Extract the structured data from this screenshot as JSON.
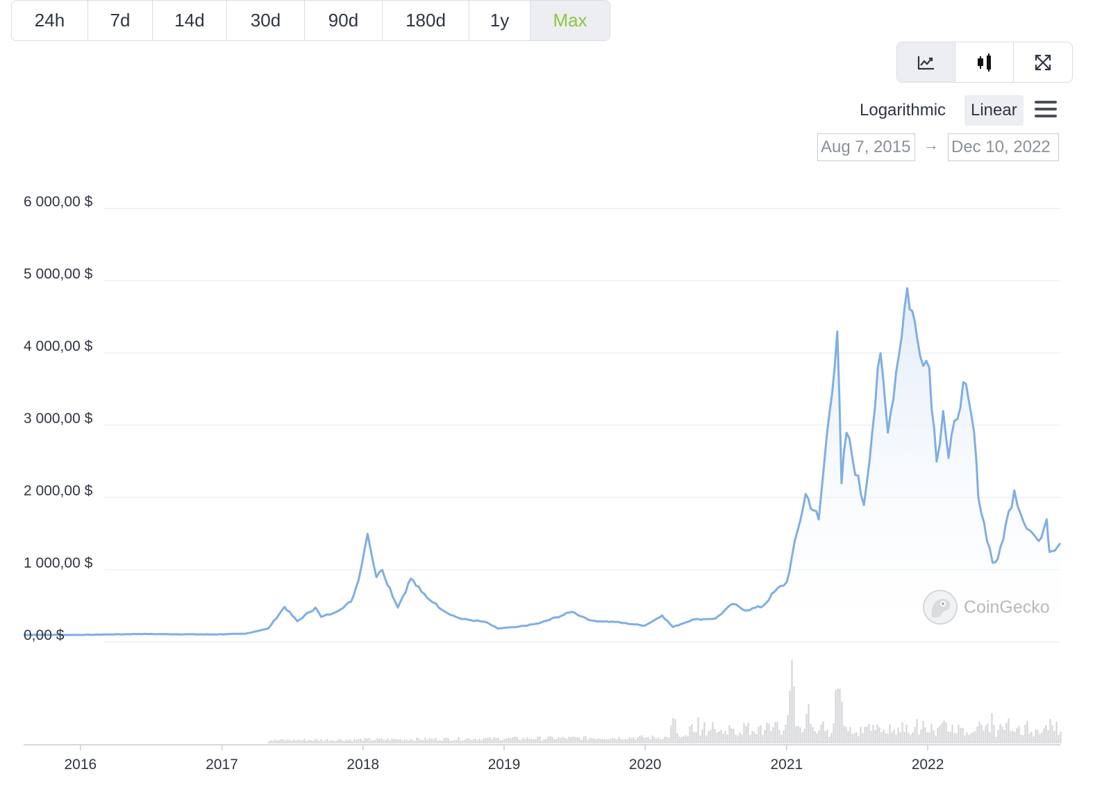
{
  "ranges": [
    "24h",
    "7d",
    "14d",
    "30d",
    "90d",
    "180d",
    "1y",
    "Max"
  ],
  "active_range": "Max",
  "view_modes": [
    {
      "name": "line-chart",
      "icon": "line-chart-icon",
      "active": true
    },
    {
      "name": "candlestick",
      "icon": "candlestick-icon",
      "active": false
    },
    {
      "name": "fullscreen",
      "icon": "fullscreen-icon",
      "active": false
    }
  ],
  "scale": {
    "logarithmic": "Logarithmic",
    "linear": "Linear",
    "active": "Linear"
  },
  "date_range": {
    "from": "Aug 7, 2015",
    "arrow": "→",
    "to": "Dec 10, 2022"
  },
  "watermark": "CoinGecko",
  "colors": {
    "line": "#7eaee3",
    "fill_top": "#dfeaf8",
    "volume": "#d4d6d9",
    "accent": "#8dc63f"
  },
  "chart_data": {
    "type": "area",
    "title": "",
    "xlabel": "",
    "ylabel": "",
    "ylim": [
      0,
      6000
    ],
    "yticks": [
      {
        "value": 0,
        "label": "0,00 $"
      },
      {
        "value": 1000,
        "label": "1 000,00 $"
      },
      {
        "value": 2000,
        "label": "2 000,00 $"
      },
      {
        "value": 3000,
        "label": "3 000,00 $"
      },
      {
        "value": 4000,
        "label": "4 000,00 $"
      },
      {
        "value": 5000,
        "label": "5 000,00 $"
      },
      {
        "value": 6000,
        "label": "6 000,00 $"
      }
    ],
    "xlim": [
      "2015-08-07",
      "2022-12-10"
    ],
    "xticks": [
      {
        "date": "2016-01-01",
        "label": "2016"
      },
      {
        "date": "2017-01-01",
        "label": "2017"
      },
      {
        "date": "2018-01-01",
        "label": "2018"
      },
      {
        "date": "2019-01-01",
        "label": "2019"
      },
      {
        "date": "2020-01-01",
        "label": "2020"
      },
      {
        "date": "2021-01-01",
        "label": "2021"
      },
      {
        "date": "2022-01-01",
        "label": "2022"
      }
    ],
    "grid": true,
    "price": [
      [
        "2015-08-07",
        3
      ],
      [
        "2016-01-01",
        1
      ],
      [
        "2016-06-01",
        14
      ],
      [
        "2016-12-01",
        8
      ],
      [
        "2017-03-01",
        16
      ],
      [
        "2017-05-01",
        90
      ],
      [
        "2017-06-12",
        390
      ],
      [
        "2017-07-15",
        190
      ],
      [
        "2017-08-31",
        380
      ],
      [
        "2017-09-15",
        250
      ],
      [
        "2017-10-15",
        300
      ],
      [
        "2017-12-01",
        460
      ],
      [
        "2017-12-20",
        750
      ],
      [
        "2018-01-13",
        1400
      ],
      [
        "2018-02-05",
        800
      ],
      [
        "2018-02-20",
        900
      ],
      [
        "2018-04-01",
        380
      ],
      [
        "2018-05-05",
        780
      ],
      [
        "2018-06-01",
        600
      ],
      [
        "2018-07-01",
        450
      ],
      [
        "2018-08-15",
        280
      ],
      [
        "2018-09-15",
        220
      ],
      [
        "2018-11-15",
        180
      ],
      [
        "2018-12-15",
        90
      ],
      [
        "2019-02-01",
        110
      ],
      [
        "2019-04-01",
        160
      ],
      [
        "2019-06-26",
        320
      ],
      [
        "2019-08-15",
        200
      ],
      [
        "2019-10-15",
        180
      ],
      [
        "2019-12-31",
        130
      ],
      [
        "2020-02-14",
        270
      ],
      [
        "2020-03-13",
        110
      ],
      [
        "2020-05-01",
        210
      ],
      [
        "2020-07-01",
        230
      ],
      [
        "2020-08-15",
        430
      ],
      [
        "2020-09-15",
        340
      ],
      [
        "2020-11-01",
        400
      ],
      [
        "2020-12-01",
        600
      ],
      [
        "2021-01-01",
        730
      ],
      [
        "2021-02-19",
        1950
      ],
      [
        "2021-03-25",
        1600
      ],
      [
        "2021-05-12",
        4200
      ],
      [
        "2021-05-23",
        2100
      ],
      [
        "2021-06-05",
        2800
      ],
      [
        "2021-07-20",
        1800
      ],
      [
        "2021-09-01",
        3900
      ],
      [
        "2021-09-20",
        2800
      ],
      [
        "2021-11-09",
        4800
      ],
      [
        "2021-12-05",
        4100
      ],
      [
        "2022-01-05",
        3700
      ],
      [
        "2022-01-24",
        2400
      ],
      [
        "2022-02-10",
        3100
      ],
      [
        "2022-02-24",
        2450
      ],
      [
        "2022-04-03",
        3500
      ],
      [
        "2022-05-01",
        2800
      ],
      [
        "2022-05-12",
        1900
      ],
      [
        "2022-06-18",
        1000
      ],
      [
        "2022-07-01",
        1050
      ],
      [
        "2022-08-13",
        2000
      ],
      [
        "2022-09-07",
        1550
      ],
      [
        "2022-10-15",
        1300
      ],
      [
        "2022-11-05",
        1600
      ],
      [
        "2022-11-12",
        1150
      ],
      [
        "2022-12-10",
        1270
      ]
    ],
    "volume_peaks": [
      [
        "2020-09-15",
        0.25
      ],
      [
        "2021-01-11",
        1.0
      ],
      [
        "2021-02-23",
        0.45
      ],
      [
        "2021-05-12",
        0.85
      ],
      [
        "2021-05-20",
        0.6
      ],
      [
        "2020-03-13",
        0.3
      ],
      [
        "2022-06-13",
        0.3
      ],
      [
        "2022-11-09",
        0.28
      ]
    ]
  }
}
